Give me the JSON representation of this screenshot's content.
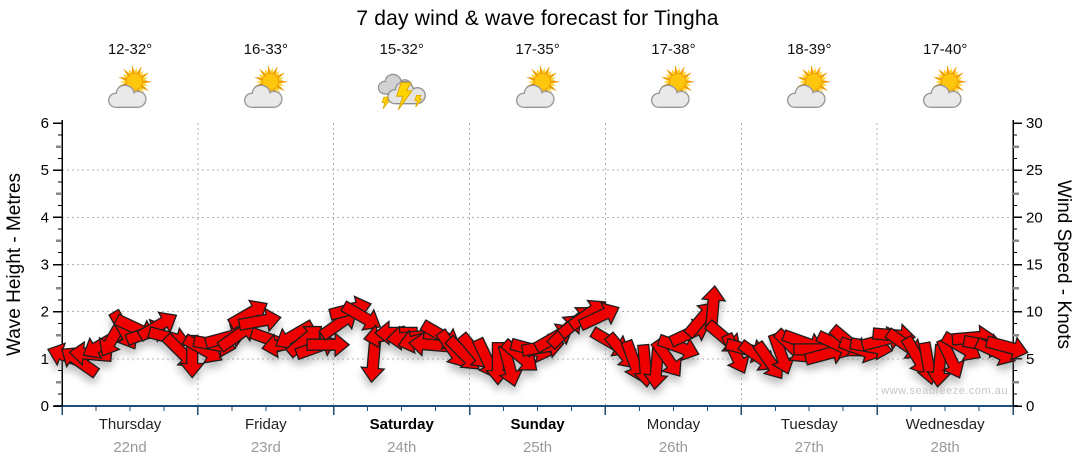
{
  "title": "7 day wind & wave forecast for Tingha",
  "watermark": "www.seabreeze.com.au",
  "colors": {
    "arrow_fill": "#ee0000",
    "arrow_outline": "#1c1c1c",
    "axis_line": "#000000",
    "baseline": "#1f4e79",
    "gridline": "#b3b3b3",
    "half_tick": "#888888",
    "day_label": "#1f1f1f",
    "date_label": "#9a9a9a",
    "watermark": "#c6c6c6"
  },
  "left_axis": {
    "label": "Wave Height - Metres",
    "min": 0,
    "max": 6,
    "step": 1,
    "ticks": [
      "0",
      "1",
      "2",
      "3",
      "4",
      "5",
      "6"
    ]
  },
  "right_axis": {
    "label": "Wind Speed - Knots",
    "min": 0,
    "max": 30,
    "step": 5,
    "ticks": [
      "0",
      "5",
      "10",
      "15",
      "20",
      "25",
      "30"
    ]
  },
  "days": [
    {
      "name": "Thursday",
      "date": "22nd",
      "temp": "12-32°",
      "icon": "partly-cloudy-icon",
      "weekend": false
    },
    {
      "name": "Friday",
      "date": "23rd",
      "temp": "16-33°",
      "icon": "partly-cloudy-icon",
      "weekend": false
    },
    {
      "name": "Saturday",
      "date": "24th",
      "temp": "15-32°",
      "icon": "thunderstorm-icon",
      "weekend": true
    },
    {
      "name": "Sunday",
      "date": "25th",
      "temp": "17-35°",
      "icon": "partly-cloudy-icon",
      "weekend": true
    },
    {
      "name": "Monday",
      "date": "26th",
      "temp": "17-38°",
      "icon": "partly-cloudy-icon",
      "weekend": false
    },
    {
      "name": "Tuesday",
      "date": "27th",
      "temp": "18-39°",
      "icon": "partly-cloudy-icon",
      "weekend": false
    },
    {
      "name": "Wednesday",
      "date": "28th",
      "temp": "17-40°",
      "icon": "partly-cloudy-icon",
      "weekend": false
    }
  ],
  "chart_data": {
    "type": "scatter",
    "marker": "wind-arrow",
    "title": "7 day wind & wave forecast for Tingha",
    "ylabel_left": "Wave Height - Metres",
    "ylabel_right": "Wind Speed - Knots",
    "ylim_left": [
      0,
      6
    ],
    "ylim_right": [
      0,
      30
    ],
    "grid": "dotted, horizontal every 1 m / 5 knots, vertical at day boundaries",
    "legend": "none",
    "samples_per_day": 12,
    "days": [
      "Thursday 22nd",
      "Friday 23rd",
      "Saturday 24th",
      "Sunday 25th",
      "Monday 26th",
      "Tuesday 27th",
      "Wednesday 28th"
    ],
    "wave_height_m": [
      1.05,
      0.95,
      1.1,
      1.3,
      1.45,
      1.6,
      1.65,
      1.55,
      1.7,
      1.45,
      1.15,
      1.05,
      1.2,
      1.3,
      1.45,
      1.5,
      1.95,
      1.8,
      1.4,
      1.3,
      1.5,
      1.4,
      1.25,
      1.3,
      1.75,
      2.05,
      1.9,
      0.95,
      1.5,
      1.55,
      1.45,
      1.4,
      1.3,
      1.5,
      1.2,
      1.1,
      1.15,
      1.0,
      0.9,
      0.85,
      1.05,
      1.2,
      1.25,
      1.45,
      1.6,
      1.8,
      1.95,
      1.9,
      1.35,
      1.15,
      0.95,
      0.85,
      0.8,
      1.0,
      1.25,
      1.55,
      1.85,
      2.1,
      1.45,
      1.1,
      1.2,
      1.05,
      0.95,
      1.1,
      1.25,
      1.35,
      1.2,
      1.1,
      1.3,
      1.35,
      1.2,
      1.25,
      1.4,
      1.5,
      1.3,
      1.05,
      0.9,
      0.85,
      1.0,
      1.25,
      1.45,
      1.3,
      1.15,
      1.25
    ],
    "wind_speed_knots": [
      5.25,
      4.75,
      5.5,
      6.5,
      7.25,
      8,
      8.25,
      7.75,
      8.5,
      7.25,
      5.75,
      5.25,
      6,
      6.5,
      7.25,
      7.5,
      9.75,
      9,
      7,
      6.5,
      7.5,
      7,
      6.25,
      6.5,
      8.75,
      10.25,
      9.5,
      4.75,
      7.5,
      7.75,
      7.25,
      7,
      6.5,
      7.5,
      6,
      5.5,
      5.75,
      5,
      4.5,
      4.25,
      5.25,
      6,
      6.25,
      7.25,
      8,
      9,
      9.75,
      9.5,
      6.75,
      5.75,
      4.75,
      4.25,
      4,
      5,
      6.25,
      7.75,
      9.25,
      10.5,
      7.25,
      5.5,
      6,
      5.25,
      4.75,
      5.5,
      6.25,
      6.75,
      6,
      5.5,
      6.5,
      6.75,
      6,
      6.25,
      7,
      7.5,
      6.5,
      5.25,
      4.5,
      4.25,
      5,
      6.25,
      7.25,
      6.5,
      5.75,
      6.25
    ],
    "arrow_dir_deg": [
      200,
      215,
      185,
      150,
      120,
      60,
      25,
      -20,
      -30,
      15,
      45,
      90,
      30,
      10,
      -15,
      -35,
      -30,
      -10,
      20,
      170,
      150,
      -40,
      -20,
      0,
      -35,
      -15,
      30,
      95,
      170,
      180,
      175,
      165,
      185,
      30,
      55,
      45,
      50,
      65,
      90,
      75,
      40,
      15,
      -10,
      -30,
      -45,
      -40,
      -35,
      -25,
      30,
      50,
      70,
      85,
      95,
      55,
      20,
      -25,
      -50,
      -85,
      40,
      65,
      15,
      35,
      55,
      70,
      45,
      20,
      0,
      -15,
      25,
      40,
      20,
      10,
      -15,
      5,
      35,
      60,
      80,
      95,
      65,
      30,
      -5,
      10,
      25,
      15
    ]
  }
}
